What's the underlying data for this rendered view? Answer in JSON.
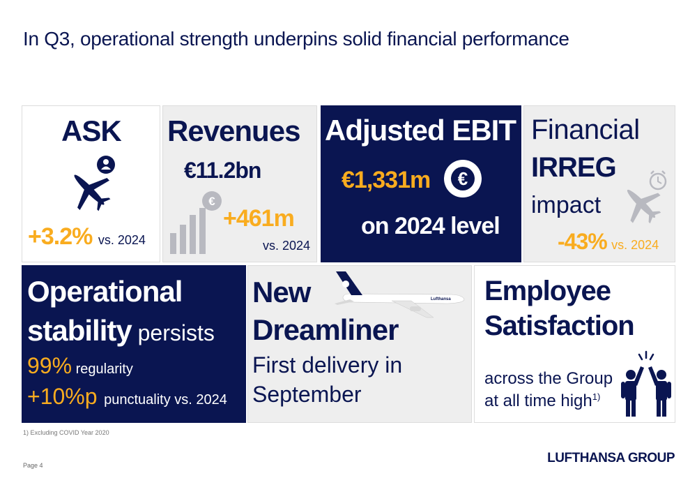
{
  "title": "In Q3, operational strength underpins solid financial performance",
  "ask": {
    "title": "ASK",
    "value": "+3.2%",
    "suffix": "vs. 2024",
    "icon": "plane-with-person-icon"
  },
  "revenues": {
    "title": "Revenues",
    "value": "€11.2bn",
    "delta": "+461m",
    "suffix": "vs. 2024",
    "icon": "bar-chart-euro-icon"
  },
  "ebit": {
    "title": "Adjusted EBIT",
    "value": "€1,331m",
    "line2": "on 2024 level",
    "icon": "euro-coin-icon"
  },
  "irreg": {
    "line1": "Financial",
    "line2": "IRREG",
    "line3": "impact",
    "value": "-43%",
    "suffix": "vs. 2024",
    "icon": "plane-clock-icon"
  },
  "stability": {
    "line1": "Operational",
    "line2_bold": "stability",
    "line2_rest": " persists",
    "reg_value": "99%",
    "reg_label": " regularity",
    "punct_value": "+10%p",
    "punct_label": " punctuality vs. 2024"
  },
  "dreamliner": {
    "line1": "New",
    "line2": "Dreamliner",
    "line3": "First delivery in",
    "line4": "September",
    "airline_label": "Lufthansa"
  },
  "employee": {
    "line1": "Employee",
    "line2": "Satisfaction",
    "line3": "across the Group",
    "line4": "at all time high",
    "sup": "1)",
    "icon": "high-five-icon"
  },
  "footnote": "1) Excluding COVID Year 2020",
  "page": "Page 4",
  "logo": "LUFTHANSA GROUP",
  "colors": {
    "navy": "#0a1551",
    "yellow": "#f9ac1f",
    "grey": "#eeeeee"
  }
}
